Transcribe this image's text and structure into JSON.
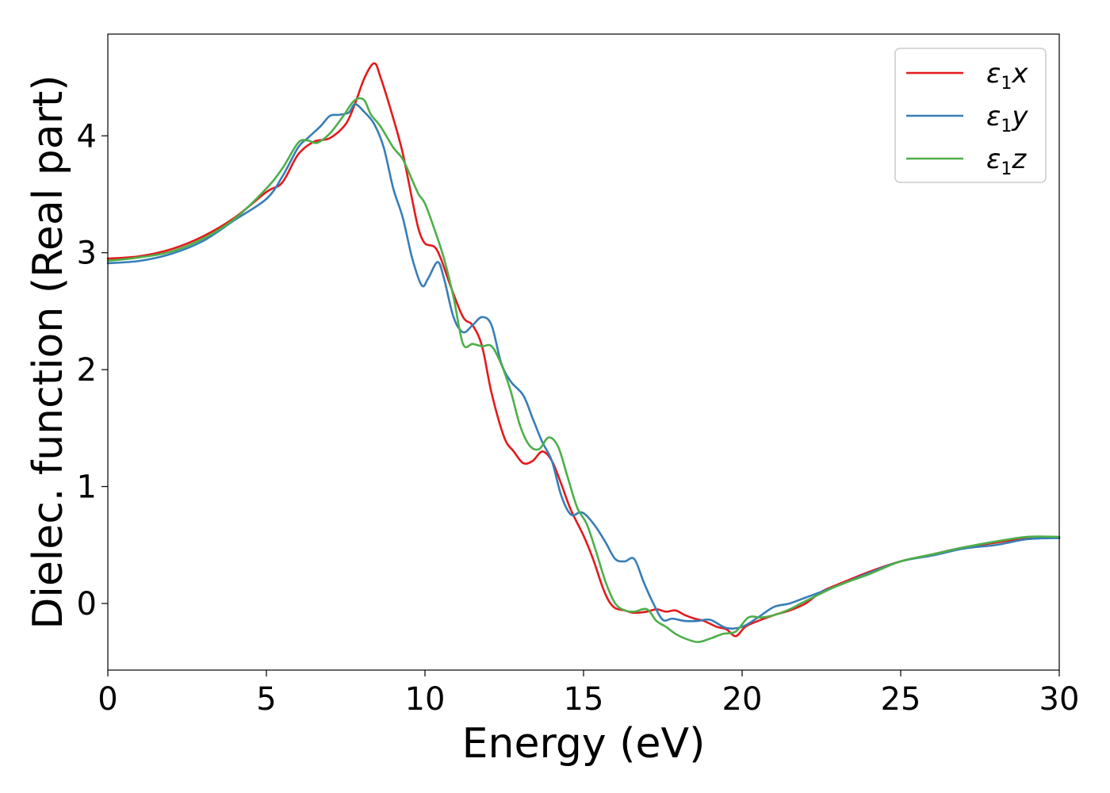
{
  "chart_data": {
    "type": "line",
    "xlabel": "Energy (eV)",
    "ylabel": "Dielec. function (Real part)",
    "xlim": [
      0,
      30
    ],
    "ylim": [
      -0.57,
      4.87
    ],
    "xticks": [
      "0",
      "5",
      "10",
      "15",
      "20",
      "25",
      "30"
    ],
    "yticks": [
      "0",
      "1",
      "2",
      "3",
      "4"
    ],
    "grid": false,
    "legend_position": "top-right",
    "series": [
      {
        "name": "ε1x",
        "legend_main": "ε",
        "legend_sub": "1",
        "legend_var": "x",
        "color": "#e41a1c",
        "x": [
          0,
          1,
          2,
          3,
          4,
          5,
          5.5,
          6,
          6.5,
          7,
          7.5,
          7.8,
          8.1,
          8.4,
          8.6,
          9,
          9.3,
          9.6,
          9.8,
          10,
          10.3,
          10.5,
          10.8,
          11.2,
          11.5,
          11.8,
          12.1,
          12.5,
          12.8,
          13.1,
          13.4,
          13.7,
          14,
          14.3,
          14.6,
          15,
          15.3,
          15.6,
          15.8,
          16,
          16.3,
          16.6,
          17,
          17.3,
          17.6,
          17.9,
          18.2,
          18.5,
          18.8,
          19.2,
          19.5,
          19.8,
          20.1,
          20.5,
          21,
          21.5,
          22,
          22.5,
          23,
          24,
          25,
          26,
          27,
          28,
          29,
          30
        ],
        "y": [
          2.95,
          2.97,
          3.03,
          3.14,
          3.3,
          3.52,
          3.6,
          3.84,
          3.95,
          3.98,
          4.1,
          4.28,
          4.5,
          4.62,
          4.5,
          4.15,
          3.85,
          3.45,
          3.2,
          3.08,
          3.05,
          2.95,
          2.72,
          2.45,
          2.38,
          2.2,
          1.8,
          1.42,
          1.3,
          1.2,
          1.22,
          1.3,
          1.22,
          1.02,
          0.8,
          0.58,
          0.38,
          0.14,
          0.02,
          -0.04,
          -0.06,
          -0.08,
          -0.07,
          -0.05,
          -0.07,
          -0.06,
          -0.1,
          -0.13,
          -0.15,
          -0.2,
          -0.22,
          -0.28,
          -0.2,
          -0.15,
          -0.1,
          -0.06,
          0.0,
          0.1,
          0.16,
          0.27,
          0.36,
          0.42,
          0.48,
          0.52,
          0.56,
          0.56
        ]
      },
      {
        "name": "ε1y",
        "legend_main": "ε",
        "legend_sub": "1",
        "legend_var": "y",
        "color": "#377eb8",
        "x": [
          0,
          1,
          2,
          3,
          4,
          5,
          5.5,
          6,
          6.3,
          6.7,
          7,
          7.3,
          7.6,
          7.8,
          8.1,
          8.4,
          8.7,
          9,
          9.3,
          9.6,
          9.9,
          10.1,
          10.4,
          10.6,
          10.9,
          11.2,
          11.5,
          11.8,
          12.1,
          12.4,
          12.7,
          13.1,
          13.4,
          13.7,
          14,
          14.3,
          14.6,
          14.9,
          15.1,
          15.4,
          15.7,
          16,
          16.3,
          16.6,
          16.9,
          17.2,
          17.5,
          17.8,
          18.2,
          18.6,
          19,
          19.5,
          20,
          20.5,
          21,
          21.5,
          22,
          23,
          24,
          25,
          26,
          27,
          28,
          29,
          30
        ],
        "y": [
          2.91,
          2.93,
          2.99,
          3.1,
          3.28,
          3.46,
          3.65,
          3.9,
          3.98,
          4.08,
          4.17,
          4.18,
          4.2,
          4.27,
          4.2,
          4.1,
          3.9,
          3.55,
          3.3,
          2.95,
          2.72,
          2.78,
          2.92,
          2.78,
          2.45,
          2.32,
          2.38,
          2.45,
          2.38,
          2.06,
          1.9,
          1.78,
          1.58,
          1.38,
          1.22,
          0.92,
          0.76,
          0.78,
          0.75,
          0.65,
          0.52,
          0.38,
          0.36,
          0.38,
          0.18,
          0.0,
          -0.14,
          -0.13,
          -0.15,
          -0.15,
          -0.14,
          -0.21,
          -0.2,
          -0.12,
          -0.03,
          0.0,
          0.05,
          0.15,
          0.26,
          0.36,
          0.41,
          0.47,
          0.5,
          0.55,
          0.56
        ]
      },
      {
        "name": "ε1z",
        "legend_main": "ε",
        "legend_sub": "1",
        "legend_var": "z",
        "color": "#4daf4a",
        "x": [
          0,
          1,
          2,
          3,
          4,
          5,
          5.5,
          6,
          6.3,
          6.6,
          7,
          7.4,
          7.7,
          7.9,
          8.1,
          8.3,
          8.6,
          9,
          9.3,
          9.6,
          9.8,
          10,
          10.3,
          10.6,
          10.9,
          11.2,
          11.5,
          11.8,
          12.1,
          12.4,
          12.7,
          13,
          13.3,
          13.6,
          13.9,
          14.2,
          14.5,
          14.8,
          15.1,
          15.4,
          15.7,
          16,
          16.3,
          16.6,
          17,
          17.3,
          17.6,
          17.9,
          18.2,
          18.6,
          19,
          19.4,
          19.8,
          20.2,
          20.6,
          21,
          21.5,
          22,
          23,
          24,
          25,
          26,
          27,
          28,
          29,
          30
        ],
        "y": [
          2.93,
          2.96,
          3.01,
          3.12,
          3.29,
          3.55,
          3.72,
          3.94,
          3.96,
          3.94,
          4.02,
          4.16,
          4.28,
          4.32,
          4.3,
          4.18,
          4.08,
          3.9,
          3.8,
          3.62,
          3.5,
          3.42,
          3.2,
          2.95,
          2.62,
          2.22,
          2.22,
          2.2,
          2.2,
          2.05,
          1.82,
          1.52,
          1.35,
          1.32,
          1.42,
          1.34,
          1.08,
          0.82,
          0.68,
          0.44,
          0.18,
          0.0,
          -0.06,
          -0.07,
          -0.05,
          -0.15,
          -0.2,
          -0.26,
          -0.3,
          -0.33,
          -0.3,
          -0.26,
          -0.24,
          -0.12,
          -0.12,
          -0.1,
          -0.05,
          0.02,
          0.15,
          0.25,
          0.36,
          0.42,
          0.48,
          0.53,
          0.57,
          0.57
        ]
      }
    ]
  }
}
